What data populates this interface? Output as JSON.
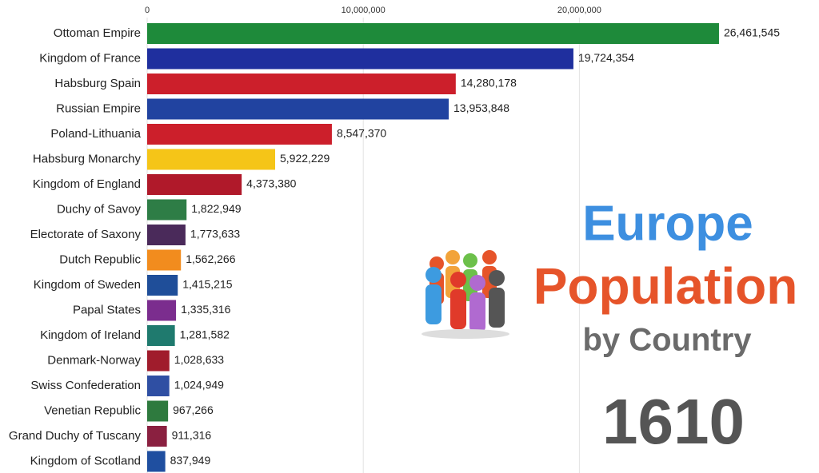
{
  "chart_data": {
    "type": "bar",
    "orientation": "horizontal",
    "title_lines": [
      "Europe",
      "Population",
      "by Country"
    ],
    "annotation": "1610",
    "categories": [
      "Ottoman Empire",
      "Kingdom of France",
      "Habsburg Spain",
      "Russian Empire",
      "Poland-Lithuania",
      "Habsburg Monarchy",
      "Kingdom of England",
      "Duchy of Savoy",
      "Electorate of Saxony",
      "Dutch Republic",
      "Kingdom of Sweden",
      "Papal States",
      "Kingdom of Ireland",
      "Denmark-Norway",
      "Swiss Confederation",
      "Venetian Republic",
      "Grand Duchy of Tuscany",
      "Kingdom of Scotland"
    ],
    "values": [
      26461545,
      19724354,
      14280178,
      13953848,
      8547370,
      5922229,
      4373380,
      1822949,
      1773633,
      1562266,
      1415215,
      1335316,
      1281582,
      1028633,
      1024949,
      967266,
      911316,
      837949
    ],
    "value_labels": [
      "26,461,545",
      "19,724,354",
      "14,280,178",
      "13,953,848",
      "8,547,370",
      "5,922,229",
      "4,373,380",
      "1,822,949",
      "1,773,633",
      "1,562,266",
      "1,415,215",
      "1,335,316",
      "1,281,582",
      "1,028,633",
      "1,024,949",
      "967,266",
      "911,316",
      "837,949"
    ],
    "colors": [
      "#1e8a3a",
      "#1f2f9e",
      "#cc1f2b",
      "#2143a0",
      "#cc1f2b",
      "#f5c518",
      "#b0192a",
      "#2e7d46",
      "#4a2a5a",
      "#f28c1e",
      "#1f4e99",
      "#7b2d8e",
      "#1f7a6e",
      "#a01c2c",
      "#2f4fa3",
      "#2e7a3e",
      "#8a2040",
      "#1f4fa0"
    ],
    "xlim": [
      0,
      26500000
    ],
    "xticks": [
      0,
      {
        "value": 10000000,
        "label": "10,000,000"
      },
      {
        "value": 20000000,
        "label": "20,000,000"
      }
    ],
    "grid": true
  }
}
